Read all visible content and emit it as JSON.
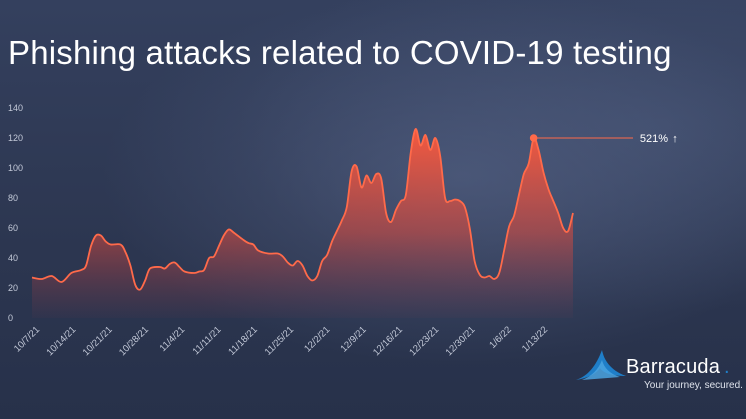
{
  "title": "Phishing attacks related to COVID-19 testing",
  "chart_data": {
    "type": "area",
    "title": "Phishing attacks related to COVID-19 testing",
    "xlabel": "",
    "ylabel": "",
    "ylim": [
      0,
      140
    ],
    "yticks": [
      0,
      20,
      40,
      60,
      80,
      100,
      120,
      140
    ],
    "x_tick_labels": [
      "10/7/21",
      "10/14/21",
      "10/21/21",
      "10/28/21",
      "11/4/21",
      "11/11/21",
      "11/18/21",
      "11/25/21",
      "12/2/21",
      "12/9/21",
      "12/16/21",
      "12/23/21",
      "12/30/21",
      "1/6/22",
      "1/13/22"
    ],
    "grid": false,
    "line_color": "#ff6a4a",
    "points": [
      [
        0,
        27
      ],
      [
        2,
        26
      ],
      [
        4,
        28
      ],
      [
        6,
        24
      ],
      [
        8,
        30
      ],
      [
        10,
        32
      ],
      [
        11,
        35
      ],
      [
        12,
        48
      ],
      [
        13,
        55
      ],
      [
        14,
        55
      ],
      [
        15,
        51
      ],
      [
        16,
        49
      ],
      [
        18,
        49
      ],
      [
        19,
        44
      ],
      [
        20,
        35
      ],
      [
        21,
        22
      ],
      [
        22,
        19
      ],
      [
        23,
        25
      ],
      [
        24,
        33
      ],
      [
        26,
        34
      ],
      [
        27,
        33
      ],
      [
        28,
        36
      ],
      [
        29,
        37
      ],
      [
        30,
        34
      ],
      [
        31,
        31
      ],
      [
        33,
        30
      ],
      [
        34,
        31
      ],
      [
        35,
        32
      ],
      [
        36,
        40
      ],
      [
        37,
        41
      ],
      [
        38,
        48
      ],
      [
        39,
        55
      ],
      [
        40,
        59
      ],
      [
        41,
        57
      ],
      [
        43,
        52
      ],
      [
        44,
        50
      ],
      [
        45,
        49
      ],
      [
        46,
        45
      ],
      [
        48,
        43
      ],
      [
        50,
        43
      ],
      [
        51,
        41
      ],
      [
        52,
        37
      ],
      [
        53,
        35
      ],
      [
        54,
        38
      ],
      [
        55,
        35
      ],
      [
        56,
        28
      ],
      [
        57,
        25
      ],
      [
        58,
        28
      ],
      [
        59,
        38
      ],
      [
        60,
        42
      ],
      [
        61,
        51
      ],
      [
        62,
        58
      ],
      [
        63,
        65
      ],
      [
        64,
        74
      ],
      [
        65,
        98
      ],
      [
        66,
        101
      ],
      [
        67,
        87
      ],
      [
        68,
        95
      ],
      [
        69,
        90
      ],
      [
        70,
        96
      ],
      [
        71,
        93
      ],
      [
        72,
        70
      ],
      [
        73,
        64
      ],
      [
        74,
        72
      ],
      [
        75,
        78
      ],
      [
        76,
        82
      ],
      [
        77,
        110
      ],
      [
        78,
        126
      ],
      [
        79,
        115
      ],
      [
        80,
        122
      ],
      [
        81,
        112
      ],
      [
        82,
        120
      ],
      [
        83,
        108
      ],
      [
        84,
        80
      ],
      [
        85,
        78
      ],
      [
        86,
        79
      ],
      [
        87,
        78
      ],
      [
        88,
        74
      ],
      [
        89,
        60
      ],
      [
        90,
        38
      ],
      [
        91,
        29
      ],
      [
        92,
        27
      ],
      [
        93,
        28
      ],
      [
        94,
        26
      ],
      [
        95,
        30
      ],
      [
        96,
        45
      ],
      [
        97,
        61
      ],
      [
        98,
        68
      ],
      [
        99,
        82
      ],
      [
        100,
        96
      ],
      [
        101,
        103
      ],
      [
        102,
        120
      ],
      [
        103,
        112
      ],
      [
        104,
        97
      ],
      [
        105,
        86
      ],
      [
        106,
        78
      ],
      [
        107,
        70
      ],
      [
        108,
        60
      ],
      [
        109,
        58
      ],
      [
        110,
        70
      ]
    ],
    "annotation": {
      "text": "521%",
      "arrow": "↑",
      "point": [
        102,
        120
      ]
    }
  },
  "brand": {
    "name": "Barracuda",
    "trademark": ".",
    "tagline": "Your journey, secured.",
    "logo_color": "#1f7ec8"
  }
}
